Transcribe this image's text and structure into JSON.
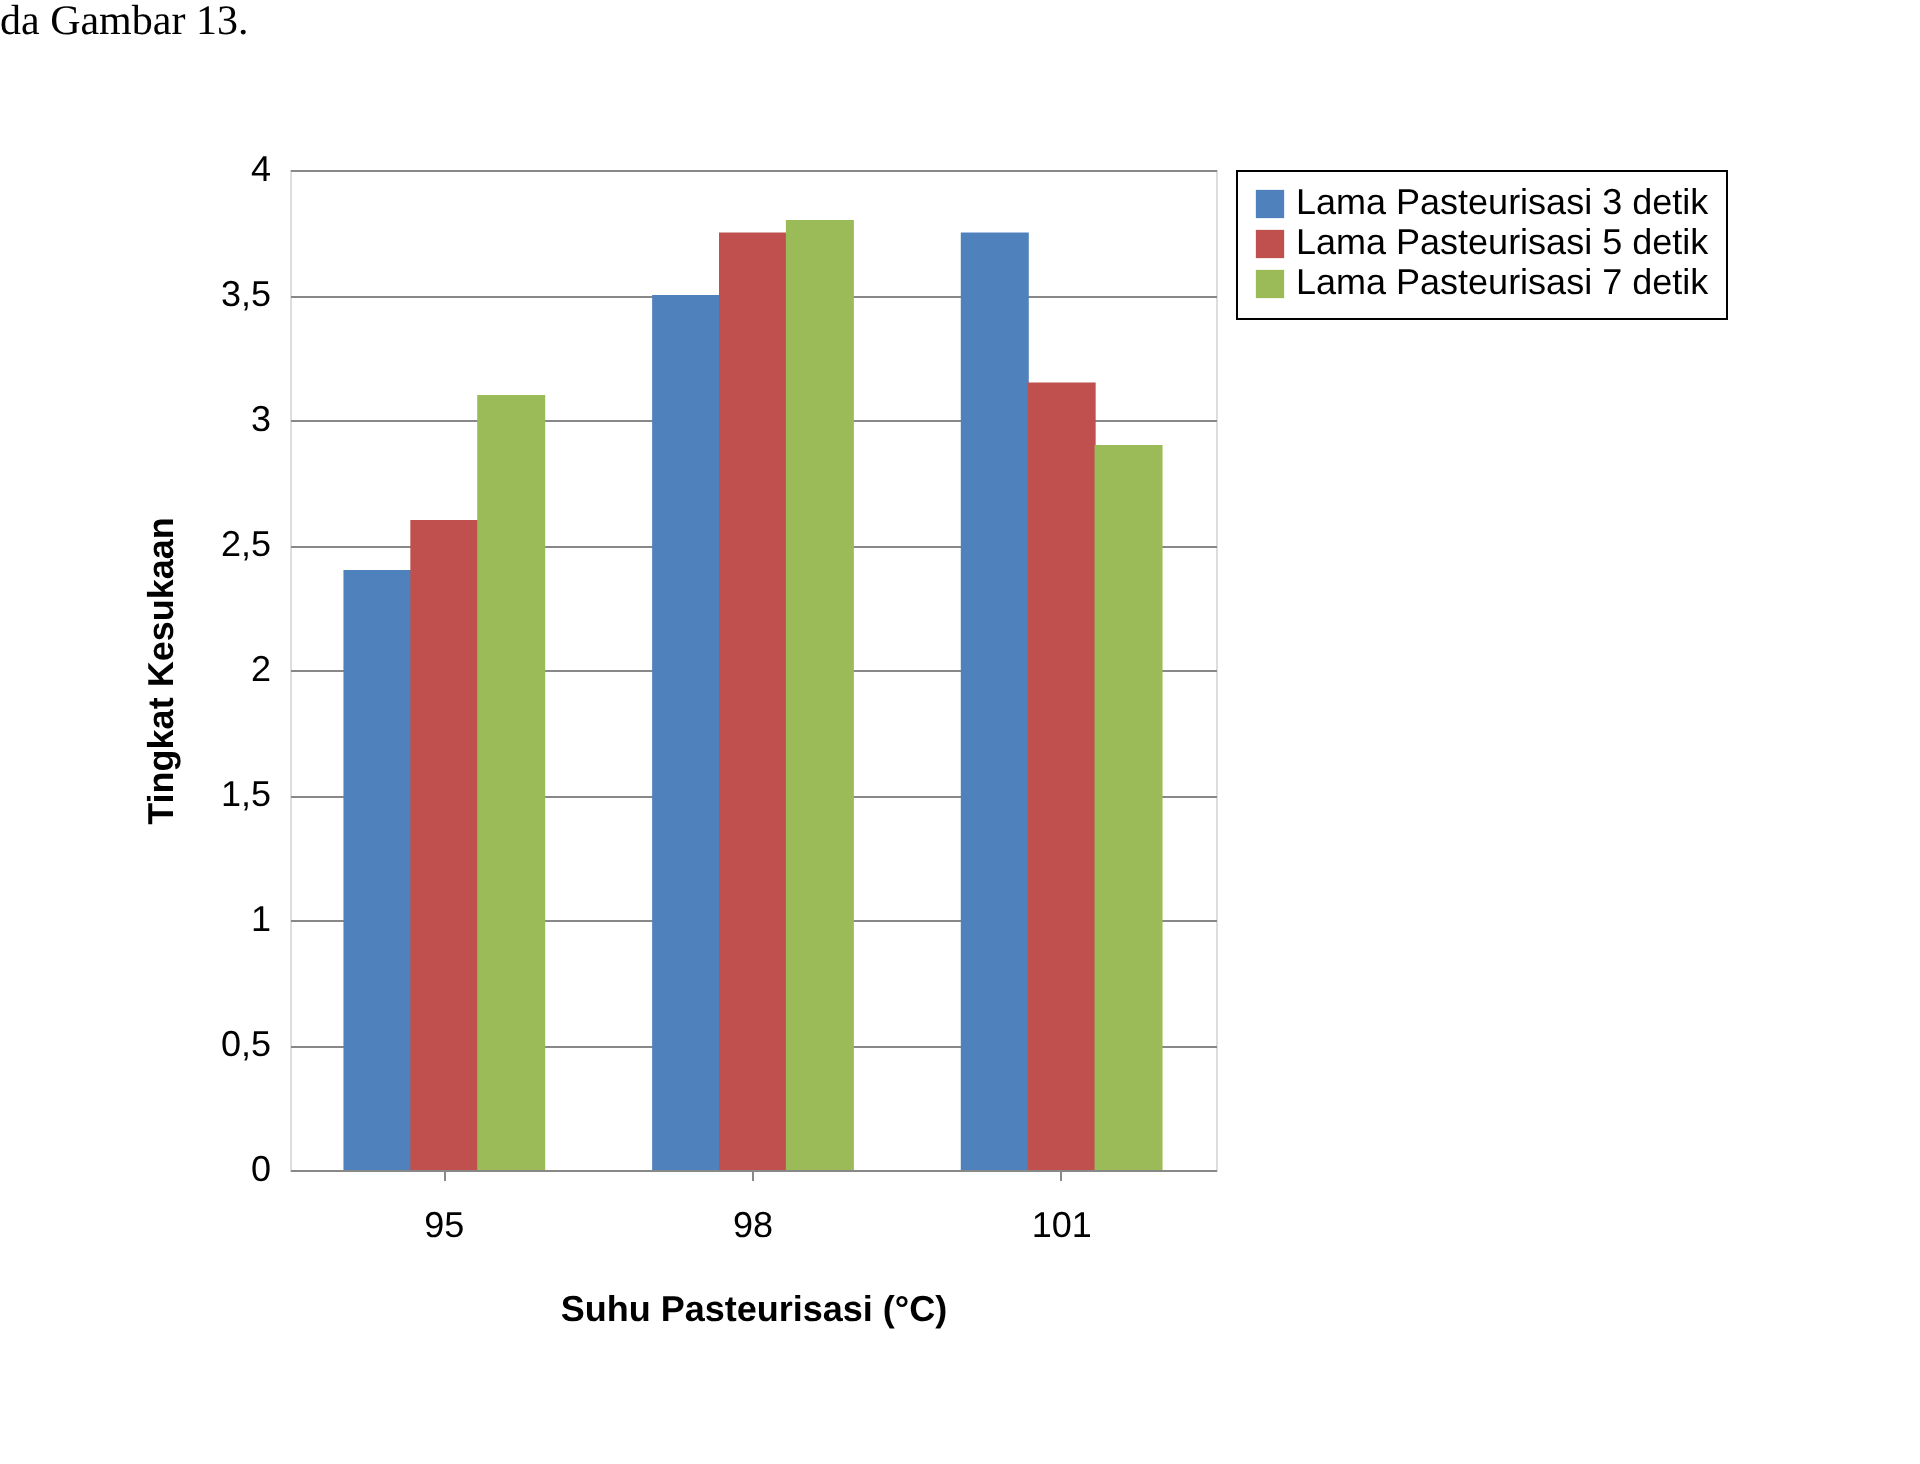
{
  "chart_data": {
    "type": "bar",
    "xlabel": "Suhu Pasteurisasi (°C)",
    "ylabel": "Tingkat Kesukaan",
    "categories": [
      "95",
      "98",
      "101"
    ],
    "series": [
      {
        "name": "Lama Pasteurisasi 3 detik",
        "color": "#4f81bd",
        "values": [
          2.4,
          3.5,
          3.75
        ]
      },
      {
        "name": "Lama Pasteurisasi 5 detik",
        "color": "#c0504d",
        "values": [
          2.6,
          3.75,
          3.15
        ]
      },
      {
        "name": "Lama Pasteurisasi 7 detik",
        "color": "#9bbb59",
        "values": [
          3.1,
          3.8,
          2.9
        ]
      }
    ],
    "ylim": [
      0,
      4
    ],
    "yticks": [
      0,
      {
        "value": 0.5,
        "label": "0,5"
      },
      1,
      {
        "value": 1.5,
        "label": "1,5"
      },
      2,
      {
        "value": 2.5,
        "label": "2,5"
      },
      3,
      {
        "value": 3.5,
        "label": "3,5"
      },
      4
    ],
    "grid": "y",
    "legend": "right",
    "annotations": [
      "da Gambar 13."
    ]
  }
}
